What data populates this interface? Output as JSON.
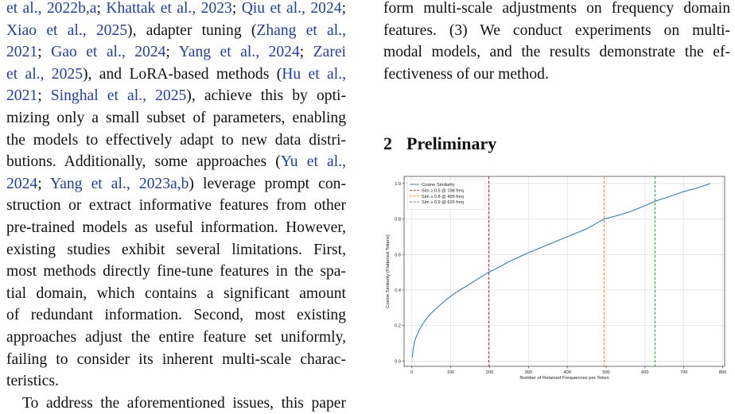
{
  "left_column": {
    "lines": [
      [
        {
          "t": "et al., 2022b,a",
          "c": true
        },
        {
          "t": "; "
        },
        {
          "t": "Khattak et al., 2023",
          "c": true
        },
        {
          "t": "; "
        },
        {
          "t": "Qiu et al., 2024",
          "c": true
        },
        {
          "t": ";"
        }
      ],
      [
        {
          "t": "Xiao et al., 2025",
          "c": true
        },
        {
          "t": "), adapter tuning ("
        },
        {
          "t": "Zhang et al.,",
          "c": true
        }
      ],
      [
        {
          "t": "2021",
          "c": true
        },
        {
          "t": "; "
        },
        {
          "t": "Gao et al., 2024",
          "c": true
        },
        {
          "t": "; "
        },
        {
          "t": "Yang et al., 2024",
          "c": true
        },
        {
          "t": "; "
        },
        {
          "t": "Zarei",
          "c": true
        }
      ],
      [
        {
          "t": "et al., 2025",
          "c": true
        },
        {
          "t": "), and LoRA-based methods ("
        },
        {
          "t": "Hu et al.,",
          "c": true
        }
      ],
      [
        {
          "t": "2021",
          "c": true
        },
        {
          "t": "; "
        },
        {
          "t": "Singhal et al., 2025",
          "c": true
        },
        {
          "t": "), achieve this by opti-"
        }
      ],
      [
        {
          "t": "mizing only a small subset of parameters, enabling"
        }
      ],
      [
        {
          "t": "the models to effectively adapt to new data distri-"
        }
      ],
      [
        {
          "t": "butions. Additionally, some approaches ("
        },
        {
          "t": "Yu et al.,",
          "c": true
        }
      ],
      [
        {
          "t": "2024",
          "c": true
        },
        {
          "t": "; "
        },
        {
          "t": "Yang et al., 2023a,b",
          "c": true
        },
        {
          "t": ") leverage prompt con-"
        }
      ],
      [
        {
          "t": "struction or extract informative features from other"
        }
      ],
      [
        {
          "t": "pre-trained models as useful information. However,"
        }
      ],
      [
        {
          "t": "existing studies exhibit several limitations. First,"
        }
      ],
      [
        {
          "t": "most methods directly fine-tune features in the spa-"
        }
      ],
      [
        {
          "t": "tial domain, which contains a significant amount"
        }
      ],
      [
        {
          "t": "of redundant information. Second, most existing"
        }
      ],
      [
        {
          "t": "approaches adjust the entire feature set uniformly,"
        }
      ],
      [
        {
          "t": "failing to consider its inherent multi-scale charac-"
        }
      ],
      [
        {
          "t": "teristics.",
          "last": true
        }
      ],
      [
        {
          "t": "To address the aforementioned issues, this paper",
          "indent": true
        }
      ]
    ]
  },
  "right_column": {
    "lines": [
      [
        {
          "t": "form multi-scale adjustments on frequency domain"
        }
      ],
      [
        {
          "t": "features.  (3) We conduct experiments on multi-"
        }
      ],
      [
        {
          "t": "modal models, and the results demonstrate the ef-"
        }
      ],
      [
        {
          "t": "fectiveness of our method.",
          "last": true
        }
      ]
    ]
  },
  "section": {
    "number": "2",
    "title": "Preliminary"
  },
  "chart_data": {
    "type": "line",
    "xlabel": "Number of Retained Frequencies per Token",
    "ylabel": "Cosine Similarity (Flattened Tokens)",
    "xlim": [
      -20,
      805
    ],
    "ylim": [
      -0.03,
      1.04
    ],
    "xticks": [
      0,
      100,
      200,
      300,
      400,
      500,
      600,
      700,
      800
    ],
    "yticks": [
      0.0,
      0.2,
      0.4,
      0.6,
      0.8,
      1.0
    ],
    "grid": true,
    "legend_position": "top-left",
    "series": [
      {
        "name": "Cosine Similarity",
        "color": "#1f77b4",
        "x": [
          1,
          3,
          6,
          10,
          15,
          20,
          30,
          40,
          50,
          60,
          80,
          100,
          120,
          150,
          175,
          198,
          225,
          250,
          275,
          300,
          350,
          400,
          450,
          495,
          530,
          560,
          600,
          626,
          660,
          700,
          735,
          768
        ],
        "y": [
          0.02,
          0.06,
          0.1,
          0.13,
          0.155,
          0.18,
          0.215,
          0.245,
          0.27,
          0.29,
          0.33,
          0.365,
          0.395,
          0.435,
          0.47,
          0.5,
          0.53,
          0.56,
          0.585,
          0.61,
          0.655,
          0.7,
          0.745,
          0.8,
          0.82,
          0.84,
          0.875,
          0.9,
          0.925,
          0.955,
          0.975,
          1.0
        ]
      }
    ],
    "vlines": [
      {
        "label": "Sim ≥ 0.5 @ 198 freq",
        "x": 198,
        "color": "#d62728"
      },
      {
        "label": "Sim ≥ 0.8 @ 495 freq",
        "x": 495,
        "color": "#ff7f0e"
      },
      {
        "label": "Sim ≥ 0.9 @ 626 freq",
        "x": 626,
        "color": "#2ca02c"
      }
    ]
  }
}
